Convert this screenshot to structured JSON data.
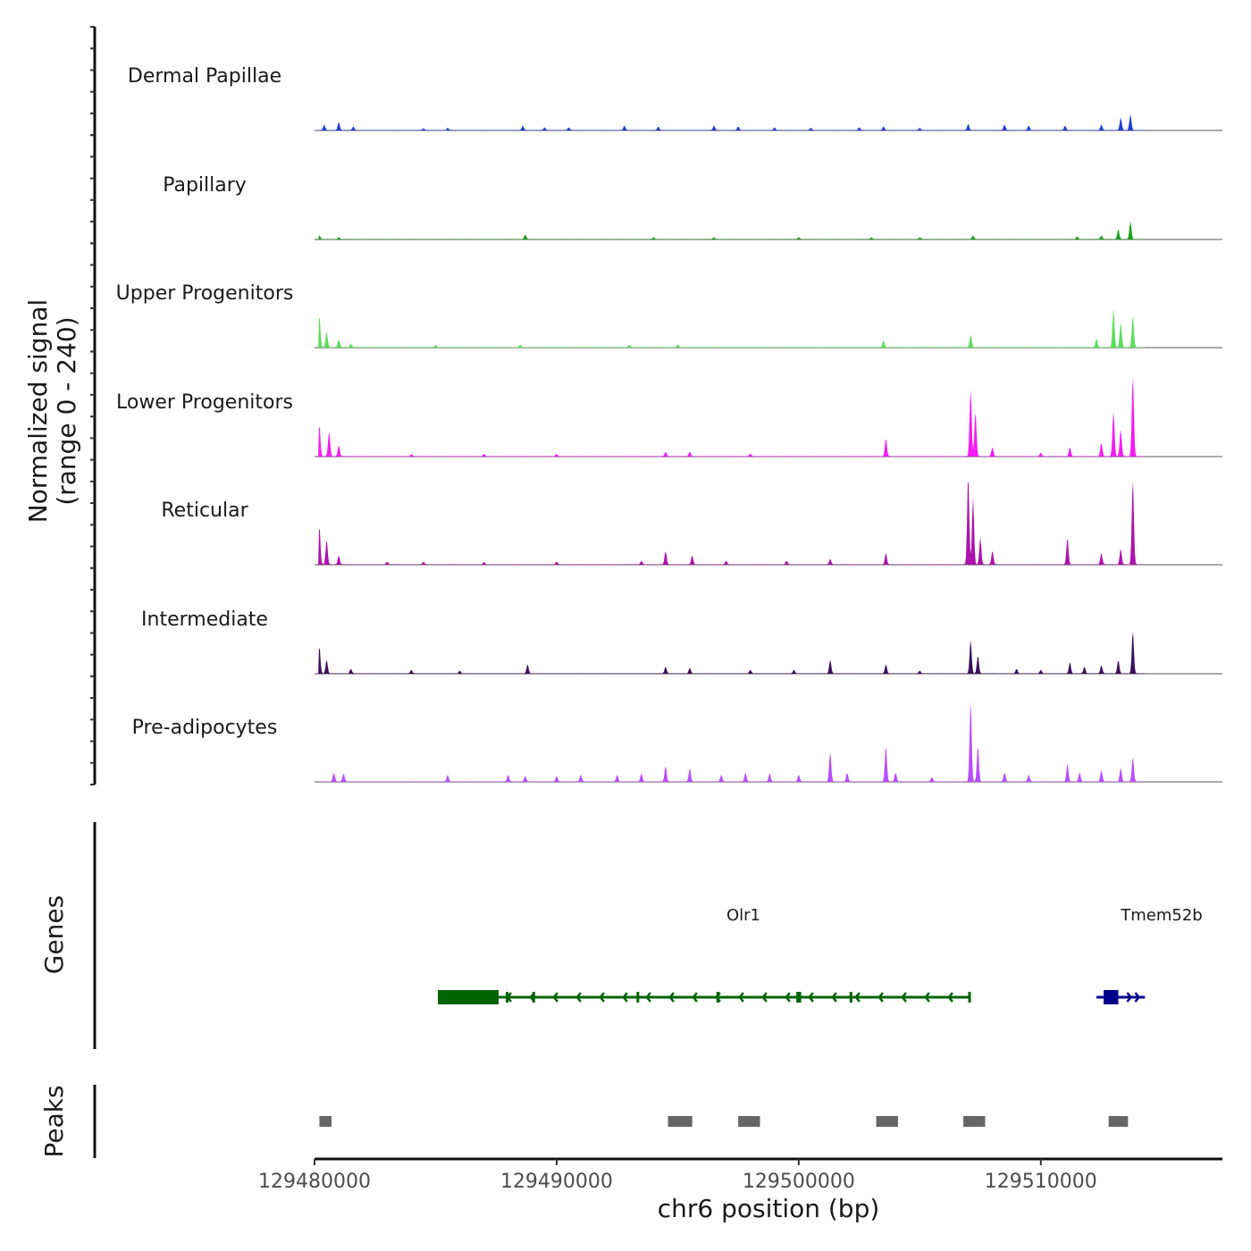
{
  "chart_data": {
    "type": "area",
    "title": "",
    "xlabel": "chr6 position (bp)",
    "ylabel": "Normalized signal",
    "ylabel_range": "(range 0 - 240)",
    "ylim": [
      0,
      240
    ],
    "xlim": [
      129480000,
      129517500
    ],
    "x_ticks": [
      129480000,
      129490000,
      129500000,
      129510000
    ],
    "x_tick_labels": [
      "129480000",
      "129490000",
      "129500000",
      "129510000"
    ],
    "coverage_tracks": [
      {
        "name": "Dermal Papillae",
        "color": "#1f3fd6",
        "peaks": [
          [
            129480400,
            12
          ],
          [
            129481000,
            18
          ],
          [
            129481600,
            8
          ],
          [
            129484500,
            4
          ],
          [
            129485500,
            5
          ],
          [
            129488600,
            10
          ],
          [
            129489500,
            6
          ],
          [
            129490500,
            6
          ],
          [
            129492800,
            10
          ],
          [
            129494200,
            8
          ],
          [
            129496500,
            10
          ],
          [
            129497500,
            8
          ],
          [
            129499000,
            6
          ],
          [
            129500500,
            5
          ],
          [
            129502500,
            6
          ],
          [
            129503500,
            8
          ],
          [
            129505000,
            5
          ],
          [
            129507000,
            14
          ],
          [
            129508500,
            12
          ],
          [
            129509500,
            10
          ],
          [
            129511000,
            10
          ],
          [
            129512500,
            12
          ],
          [
            129513300,
            28
          ],
          [
            129513700,
            35
          ]
        ]
      },
      {
        "name": "Papillary",
        "color": "#1fa01f",
        "peaks": [
          [
            129480200,
            8
          ],
          [
            129481000,
            4
          ],
          [
            129488700,
            10
          ],
          [
            129494000,
            4
          ],
          [
            129496500,
            4
          ],
          [
            129500000,
            4
          ],
          [
            129503000,
            4
          ],
          [
            129505000,
            4
          ],
          [
            129507200,
            8
          ],
          [
            129511500,
            6
          ],
          [
            129512500,
            8
          ],
          [
            129513200,
            22
          ],
          [
            129513700,
            40
          ]
        ]
      },
      {
        "name": "Upper Progenitors",
        "color": "#5ddd5d",
        "peaks": [
          [
            129480200,
            70
          ],
          [
            129480500,
            35
          ],
          [
            129481000,
            18
          ],
          [
            129481500,
            8
          ],
          [
            129485000,
            5
          ],
          [
            129488500,
            6
          ],
          [
            129493000,
            6
          ],
          [
            129495000,
            6
          ],
          [
            129503500,
            15
          ],
          [
            129507100,
            28
          ],
          [
            129512300,
            20
          ],
          [
            129513000,
            85
          ],
          [
            129513300,
            55
          ],
          [
            129513800,
            70
          ]
        ]
      },
      {
        "name": "Lower Progenitors",
        "color": "#f41cf4",
        "peaks": [
          [
            129480200,
            70
          ],
          [
            129480600,
            55
          ],
          [
            129481000,
            25
          ],
          [
            129484000,
            5
          ],
          [
            129487000,
            5
          ],
          [
            129490000,
            5
          ],
          [
            129494500,
            10
          ],
          [
            129495500,
            10
          ],
          [
            129498000,
            6
          ],
          [
            129503600,
            40
          ],
          [
            129507100,
            150
          ],
          [
            129507300,
            100
          ],
          [
            129508000,
            20
          ],
          [
            129510000,
            8
          ],
          [
            129511200,
            20
          ],
          [
            129512500,
            30
          ],
          [
            129513000,
            100
          ],
          [
            129513300,
            60
          ],
          [
            129513800,
            180
          ]
        ]
      },
      {
        "name": "Reticular",
        "color": "#ab14ab",
        "peaks": [
          [
            129480200,
            85
          ],
          [
            129480500,
            55
          ],
          [
            129481000,
            20
          ],
          [
            129483000,
            6
          ],
          [
            129484500,
            6
          ],
          [
            129487000,
            5
          ],
          [
            129490000,
            6
          ],
          [
            129493500,
            8
          ],
          [
            129494500,
            30
          ],
          [
            129495600,
            20
          ],
          [
            129497000,
            8
          ],
          [
            129499500,
            8
          ],
          [
            129501300,
            12
          ],
          [
            129503600,
            25
          ],
          [
            129507000,
            200
          ],
          [
            129507200,
            150
          ],
          [
            129507500,
            60
          ],
          [
            129508000,
            30
          ],
          [
            129511100,
            60
          ],
          [
            129512500,
            25
          ],
          [
            129513300,
            35
          ],
          [
            129513800,
            190
          ]
        ]
      },
      {
        "name": "Intermediate",
        "color": "#3b0f5c",
        "peaks": [
          [
            129480200,
            60
          ],
          [
            129480500,
            30
          ],
          [
            129481500,
            10
          ],
          [
            129484000,
            8
          ],
          [
            129486000,
            6
          ],
          [
            129488800,
            20
          ],
          [
            129494500,
            15
          ],
          [
            129495500,
            12
          ],
          [
            129498000,
            8
          ],
          [
            129499800,
            8
          ],
          [
            129501300,
            30
          ],
          [
            129503600,
            20
          ],
          [
            129505000,
            6
          ],
          [
            129507100,
            75
          ],
          [
            129507400,
            40
          ],
          [
            129509000,
            10
          ],
          [
            129510000,
            8
          ],
          [
            129511200,
            25
          ],
          [
            129511800,
            15
          ],
          [
            129512500,
            18
          ],
          [
            129513200,
            30
          ],
          [
            129513800,
            95
          ]
        ]
      },
      {
        "name": "Pre-adipocytes",
        "color": "#b94dfa",
        "peaks": [
          [
            129480800,
            20
          ],
          [
            129481200,
            18
          ],
          [
            129485500,
            15
          ],
          [
            129488000,
            15
          ],
          [
            129488700,
            12
          ],
          [
            129490000,
            12
          ],
          [
            129491000,
            15
          ],
          [
            129492500,
            15
          ],
          [
            129493500,
            18
          ],
          [
            129494500,
            35
          ],
          [
            129495500,
            30
          ],
          [
            129496800,
            15
          ],
          [
            129497800,
            20
          ],
          [
            129498800,
            18
          ],
          [
            129500000,
            15
          ],
          [
            129501300,
            65
          ],
          [
            129502000,
            20
          ],
          [
            129503600,
            80
          ],
          [
            129504000,
            20
          ],
          [
            129505500,
            10
          ],
          [
            129507100,
            180
          ],
          [
            129507400,
            80
          ],
          [
            129508500,
            20
          ],
          [
            129509500,
            15
          ],
          [
            129511100,
            40
          ],
          [
            129511600,
            20
          ],
          [
            129512500,
            25
          ],
          [
            129513300,
            30
          ],
          [
            129513800,
            55
          ]
        ]
      }
    ],
    "genes": [
      {
        "name": "Olr1",
        "strand": "-",
        "color": "#006400",
        "start": 129485100,
        "end": 129507000,
        "thick_start": 129485100,
        "thick_end": 129487600,
        "exons": [
          [
            129485100,
            129487600
          ],
          [
            129487900,
            129488000
          ],
          [
            129489000,
            129489100
          ],
          [
            129493300,
            129493400
          ],
          [
            129496600,
            129496700
          ],
          [
            129499900,
            129500100
          ],
          [
            129502100,
            129502200
          ],
          [
            129507000,
            129507100
          ]
        ]
      },
      {
        "name": "Tmem52b",
        "strand": "+",
        "color": "#00008b",
        "start": 129512300,
        "end": 129514300,
        "thick_start": 129512600,
        "thick_end": 129513200,
        "exons": [
          [
            129512600,
            129513200
          ]
        ]
      }
    ],
    "peaks": [
      [
        129480200,
        129480700
      ],
      [
        129494600,
        129495600
      ],
      [
        129497500,
        129498400
      ],
      [
        129503200,
        129504100
      ],
      [
        129506800,
        129507700
      ],
      [
        129512800,
        129513600
      ]
    ],
    "track_labels": {
      "genes": "Genes",
      "peaks": "Peaks"
    }
  }
}
